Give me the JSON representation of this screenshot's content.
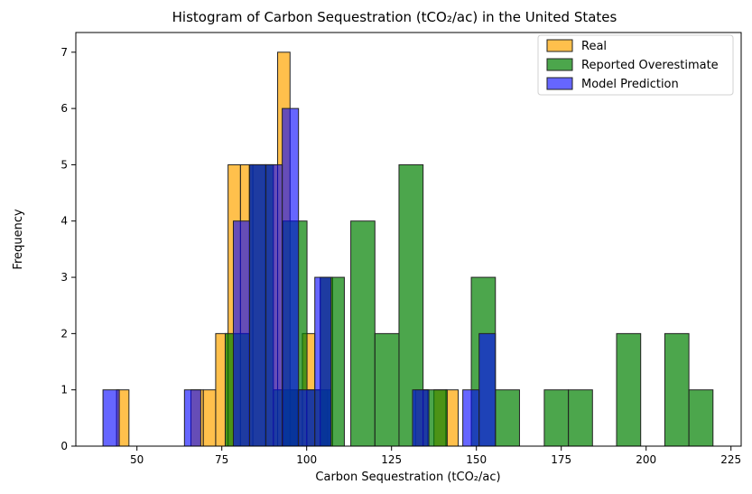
{
  "chart_data": {
    "type": "bar",
    "title": "Histogram of Carbon Sequestration (tCO₂/ac) in the United States",
    "xlabel": "Carbon Sequestration (tCO₂/ac)",
    "ylabel": "Frequency",
    "xlim": [
      32,
      228
    ],
    "ylim": [
      0,
      7.35
    ],
    "xticks": [
      50,
      75,
      100,
      125,
      150,
      175,
      200,
      225
    ],
    "yticks": [
      0,
      1,
      2,
      3,
      4,
      5,
      6,
      7
    ],
    "legend_position": "top-right",
    "series": [
      {
        "name": "Real",
        "color": "#ffa500",
        "bin_width": 3.65,
        "bins": [
          {
            "x": 44.0,
            "count": 1
          },
          {
            "x": 47.65,
            "count": 0
          },
          {
            "x": 51.3,
            "count": 0
          },
          {
            "x": 54.95,
            "count": 0
          },
          {
            "x": 58.6,
            "count": 0
          },
          {
            "x": 62.25,
            "count": 0
          },
          {
            "x": 65.9,
            "count": 1
          },
          {
            "x": 69.55,
            "count": 1
          },
          {
            "x": 73.2,
            "count": 2
          },
          {
            "x": 76.85,
            "count": 5
          },
          {
            "x": 80.5,
            "count": 5
          },
          {
            "x": 84.15,
            "count": 5
          },
          {
            "x": 87.8,
            "count": 5
          },
          {
            "x": 91.45,
            "count": 7
          },
          {
            "x": 95.1,
            "count": 1
          },
          {
            "x": 98.75,
            "count": 2
          },
          {
            "x": 102.4,
            "count": 1
          },
          {
            "x": 106.05,
            "count": 0
          },
          {
            "x": 104.0,
            "count": 3
          },
          {
            "x": 132.0,
            "count": 1
          },
          {
            "x": 137.5,
            "count": 1
          },
          {
            "x": 141.0,
            "count": 1
          }
        ]
      },
      {
        "name": "Reported Overestimate",
        "color": "#008000",
        "bin_width": 7.1,
        "bins": [
          {
            "x": 76.0,
            "count": 2
          },
          {
            "x": 83.1,
            "count": 5
          },
          {
            "x": 90.2,
            "count": 1
          },
          {
            "x": 93.0,
            "count": 4
          },
          {
            "x": 100.0,
            "count": 1
          },
          {
            "x": 104.0,
            "count": 3
          },
          {
            "x": 113.0,
            "count": 4
          },
          {
            "x": 120.1,
            "count": 2
          },
          {
            "x": 127.2,
            "count": 5
          },
          {
            "x": 134.3,
            "count": 1
          },
          {
            "x": 148.5,
            "count": 3
          },
          {
            "x": 155.6,
            "count": 1
          },
          {
            "x": 170.0,
            "count": 1
          },
          {
            "x": 177.1,
            "count": 1
          },
          {
            "x": 191.3,
            "count": 2
          },
          {
            "x": 205.5,
            "count": 2
          },
          {
            "x": 212.6,
            "count": 1
          }
        ]
      },
      {
        "name": "Model Prediction",
        "color": "#0000ff",
        "bin_width": 4.8,
        "bins": [
          {
            "x": 40.0,
            "count": 1
          },
          {
            "x": 44.8,
            "count": 0
          },
          {
            "x": 49.6,
            "count": 0
          },
          {
            "x": 54.4,
            "count": 0
          },
          {
            "x": 59.2,
            "count": 0
          },
          {
            "x": 64.0,
            "count": 1
          },
          {
            "x": 68.8,
            "count": 0
          },
          {
            "x": 73.6,
            "count": 0
          },
          {
            "x": 78.4,
            "count": 4
          },
          {
            "x": 83.2,
            "count": 5
          },
          {
            "x": 88.0,
            "count": 5
          },
          {
            "x": 92.8,
            "count": 6
          },
          {
            "x": 97.6,
            "count": 1
          },
          {
            "x": 102.4,
            "count": 3
          },
          {
            "x": 131.2,
            "count": 1
          },
          {
            "x": 146.0,
            "count": 1
          },
          {
            "x": 150.8,
            "count": 2
          }
        ]
      }
    ]
  }
}
